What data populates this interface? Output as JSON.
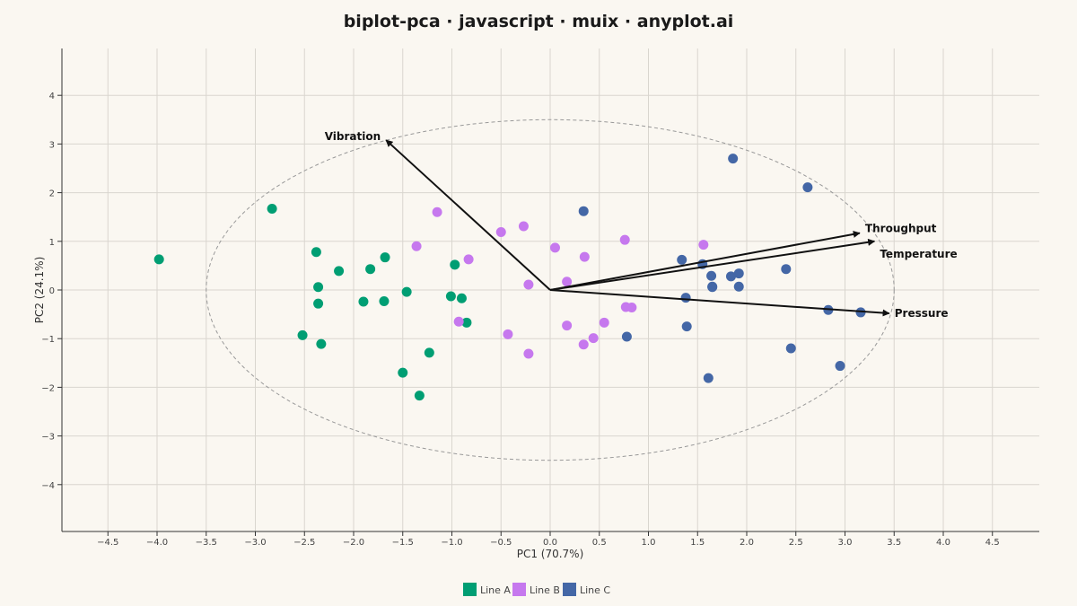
{
  "chart_data": {
    "type": "scatter",
    "title": "biplot-pca · javascript · muix · anyplot.ai",
    "xlabel": "PC1 (70.7%)",
    "ylabel": "PC2 (24.1%)",
    "xlim": [
      -5.0,
      5.0
    ],
    "ylim": [
      -5.0,
      5.0
    ],
    "x_ticks": [
      -4.5,
      -4.0,
      -3.5,
      -3.0,
      -2.5,
      -2.0,
      -1.5,
      -1.0,
      -0.5,
      0.0,
      0.5,
      1.0,
      1.5,
      2.0,
      2.5,
      3.0,
      3.5,
      4.0,
      4.5
    ],
    "x_tick_labels": [
      "−4.5",
      "−4.0",
      "−3.5",
      "−3.0",
      "−2.5",
      "−2.0",
      "−1.5",
      "−1.0",
      "−0.5",
      "0.0",
      "0.5",
      "1.0",
      "1.5",
      "2.0",
      "2.5",
      "3.0",
      "3.5",
      "4.0",
      "4.5"
    ],
    "y_ticks": [
      -4,
      -3,
      -2,
      -1,
      0,
      1,
      2,
      3,
      4
    ],
    "y_tick_labels": [
      "−4",
      "−3",
      "−2",
      "−1",
      "0",
      "1",
      "2",
      "3",
      "4"
    ],
    "grid": true,
    "legend_position": "bottom-center",
    "correlation_circle_radius": 3.5,
    "series": [
      {
        "name": "Line A",
        "color": "#009e73",
        "points": [
          [
            -3.98,
            0.63
          ],
          [
            -2.83,
            1.67
          ],
          [
            -2.38,
            0.78
          ],
          [
            -2.36,
            0.06
          ],
          [
            -2.36,
            -0.28
          ],
          [
            -2.52,
            -0.93
          ],
          [
            -2.33,
            -1.11
          ],
          [
            -2.15,
            0.39
          ],
          [
            -1.83,
            0.43
          ],
          [
            -1.9,
            -0.24
          ],
          [
            -1.68,
            0.67
          ],
          [
            -1.69,
            -0.23
          ],
          [
            -1.46,
            -0.04
          ],
          [
            -1.5,
            -1.7
          ],
          [
            -1.33,
            -2.17
          ],
          [
            -1.23,
            -1.29
          ],
          [
            -0.97,
            0.52
          ],
          [
            -1.01,
            -0.13
          ],
          [
            -0.9,
            -0.17
          ],
          [
            -0.85,
            -0.67
          ]
        ]
      },
      {
        "name": "Line B",
        "color": "#c678ee",
        "points": [
          [
            -1.15,
            1.6
          ],
          [
            -1.36,
            0.9
          ],
          [
            -0.83,
            0.63
          ],
          [
            -0.93,
            -0.65
          ],
          [
            -0.5,
            1.19
          ],
          [
            -0.27,
            1.31
          ],
          [
            -0.43,
            -0.91
          ],
          [
            -0.22,
            0.11
          ],
          [
            -0.22,
            -1.31
          ],
          [
            0.05,
            0.87
          ],
          [
            0.17,
            0.17
          ],
          [
            0.17,
            -0.73
          ],
          [
            0.35,
            0.68
          ],
          [
            0.34,
            -1.12
          ],
          [
            0.44,
            -0.99
          ],
          [
            0.55,
            -0.67
          ],
          [
            0.76,
            1.03
          ],
          [
            0.77,
            -0.35
          ],
          [
            0.83,
            -0.36
          ],
          [
            1.56,
            0.93
          ]
        ]
      },
      {
        "name": "Line C",
        "color": "#4467a6",
        "points": [
          [
            0.34,
            1.62
          ],
          [
            1.86,
            2.7
          ],
          [
            2.62,
            2.11
          ],
          [
            1.34,
            0.62
          ],
          [
            1.55,
            0.53
          ],
          [
            1.64,
            0.29
          ],
          [
            1.65,
            0.07
          ],
          [
            1.84,
            0.28
          ],
          [
            1.92,
            0.34
          ],
          [
            1.92,
            0.07
          ],
          [
            2.4,
            0.43
          ],
          [
            1.38,
            -0.16
          ],
          [
            1.39,
            -0.75
          ],
          [
            0.78,
            -0.96
          ],
          [
            1.61,
            -1.81
          ],
          [
            2.45,
            -1.2
          ],
          [
            2.83,
            -0.41
          ],
          [
            3.16,
            -0.46
          ],
          [
            2.95,
            -1.56
          ],
          [
            1.65,
            0.06
          ]
        ]
      }
    ],
    "loadings": [
      {
        "name": "Vibration",
        "x": -1.67,
        "y": 3.08
      },
      {
        "name": "Throughput",
        "x": 3.15,
        "y": 1.17
      },
      {
        "name": "Temperature",
        "x": 3.3,
        "y": 1.0
      },
      {
        "name": "Pressure",
        "x": 3.45,
        "y": -0.48
      }
    ]
  }
}
